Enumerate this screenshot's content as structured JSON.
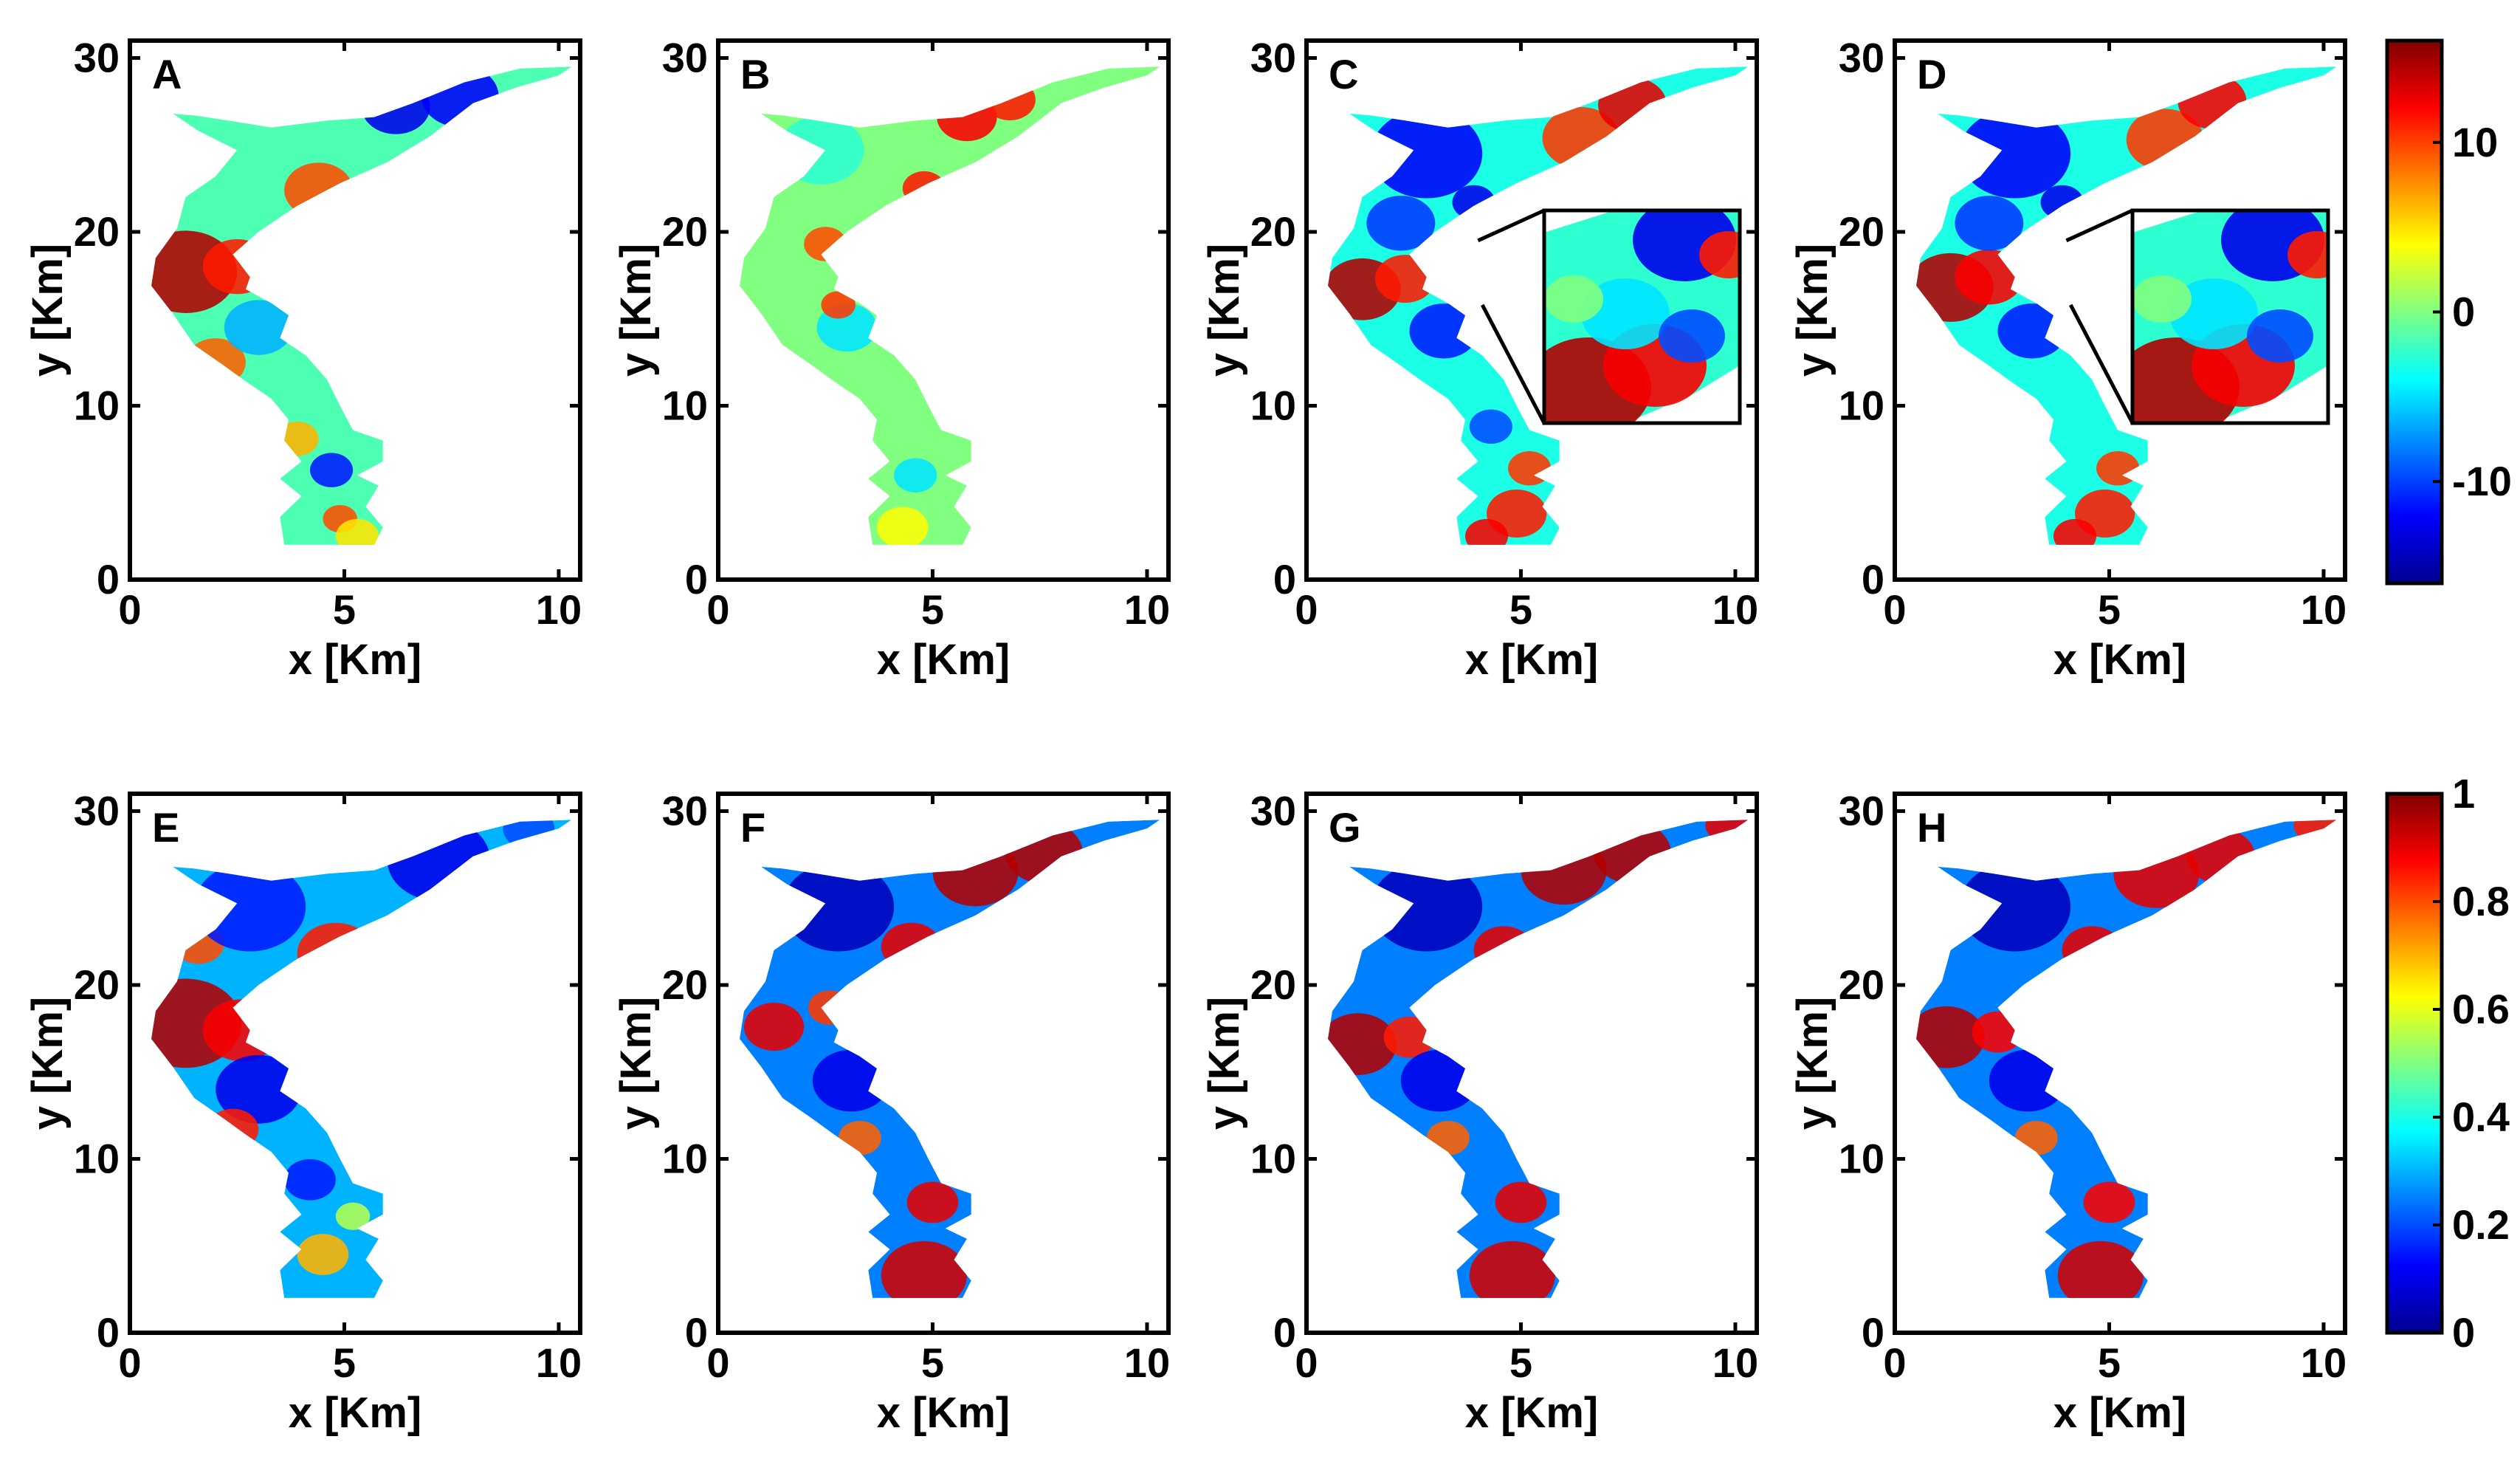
{
  "colormap": "jet",
  "colors": {
    "jet": [
      "#00008f",
      "#0000ff",
      "#0080ff",
      "#00ffff",
      "#80ff80",
      "#ffff00",
      "#ff8000",
      "#ff0000",
      "#800000"
    ]
  },
  "chart_data": [
    {
      "type": "heatmap",
      "panel": "A",
      "xlabel": "x [Km]",
      "ylabel": "y [Km]",
      "xlim": [
        0,
        10.5
      ],
      "ylim": [
        0,
        31
      ],
      "xticks": [
        0,
        5,
        10
      ],
      "yticks": [
        0,
        10,
        20,
        30
      ],
      "colorbar": "top",
      "inset": false
    },
    {
      "type": "heatmap",
      "panel": "B",
      "xlabel": "x [Km]",
      "ylabel": "y [Km]",
      "xlim": [
        0,
        10.5
      ],
      "ylim": [
        0,
        31
      ],
      "xticks": [
        0,
        5,
        10
      ],
      "yticks": [
        0,
        10,
        20,
        30
      ],
      "colorbar": "top",
      "inset": false
    },
    {
      "type": "heatmap",
      "panel": "C",
      "xlabel": "x [Km]",
      "ylabel": "y [Km]",
      "xlim": [
        0,
        10.5
      ],
      "ylim": [
        0,
        31
      ],
      "xticks": [
        0,
        5,
        10
      ],
      "yticks": [
        0,
        10,
        20,
        30
      ],
      "colorbar": "top",
      "inset": true
    },
    {
      "type": "heatmap",
      "panel": "D",
      "xlabel": "x [Km]",
      "ylabel": "y [Km]",
      "xlim": [
        0,
        10.5
      ],
      "ylim": [
        0,
        31
      ],
      "xticks": [
        0,
        5,
        10
      ],
      "yticks": [
        0,
        10,
        20,
        30
      ],
      "colorbar": "top",
      "inset": true
    },
    {
      "type": "heatmap",
      "panel": "E",
      "xlabel": "x [Km]",
      "ylabel": "y [Km]",
      "xlim": [
        0,
        10.5
      ],
      "ylim": [
        0,
        31
      ],
      "xticks": [
        0,
        5,
        10
      ],
      "yticks": [
        0,
        10,
        20,
        30
      ],
      "colorbar": "bottom",
      "inset": false
    },
    {
      "type": "heatmap",
      "panel": "F",
      "xlabel": "x [Km]",
      "ylabel": "y [Km]",
      "xlim": [
        0,
        10.5
      ],
      "ylim": [
        0,
        31
      ],
      "xticks": [
        0,
        5,
        10
      ],
      "yticks": [
        0,
        10,
        20,
        30
      ],
      "colorbar": "bottom",
      "inset": false
    },
    {
      "type": "heatmap",
      "panel": "G",
      "xlabel": "x [Km]",
      "ylabel": "y [Km]",
      "xlim": [
        0,
        10.5
      ],
      "ylim": [
        0,
        31
      ],
      "xticks": [
        0,
        5,
        10
      ],
      "yticks": [
        0,
        10,
        20,
        30
      ],
      "colorbar": "bottom",
      "inset": false
    },
    {
      "type": "heatmap",
      "panel": "H",
      "xlabel": "x [Km]",
      "ylabel": "y [Km]",
      "xlim": [
        0,
        10.5
      ],
      "ylim": [
        0,
        31
      ],
      "xticks": [
        0,
        5,
        10
      ],
      "yticks": [
        0,
        10,
        20,
        30
      ],
      "colorbar": "bottom",
      "inset": false
    }
  ],
  "colorbars": {
    "top": {
      "range": [
        -16,
        16
      ],
      "ticks": [
        10,
        0,
        -10
      ]
    },
    "bottom": {
      "range": [
        0,
        1
      ],
      "ticks": [
        1,
        0.8,
        0.6,
        0.4,
        0.2,
        0
      ]
    }
  }
}
